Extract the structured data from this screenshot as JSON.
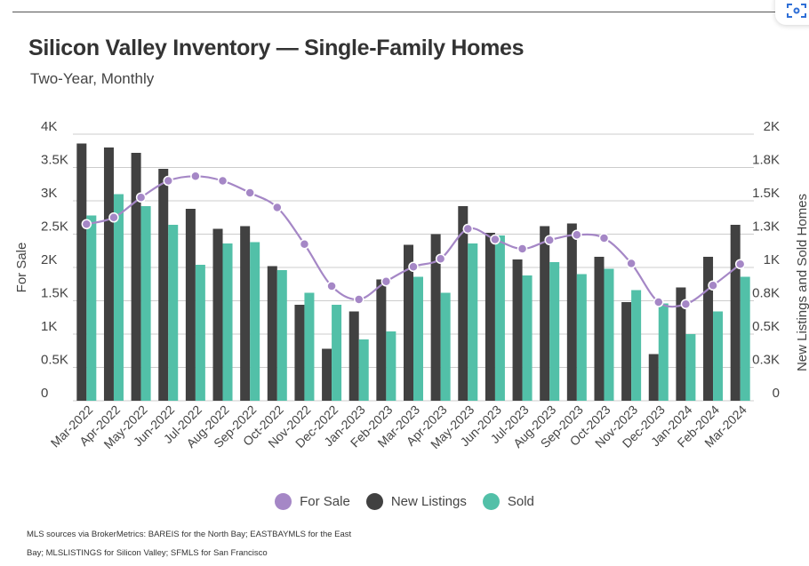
{
  "title": "Silicon Valley Inventory — Single-Family Homes",
  "subtitle": "Two-Year, Monthly",
  "source_note": "MLS sources via BrokerMetrics: BAREIS for the North Bay; EASTBAYMLS for the East Bay; MLSLISTINGS for Silicon Valley; SFMLS for San Francisco",
  "colors": {
    "for_sale": "#a587c6",
    "new_listings": "#414141",
    "sold": "#52c0a8",
    "gridline": "#cccccc",
    "text": "#444444"
  },
  "corner_button": {
    "icon": "scan-icon"
  },
  "chart_data": {
    "type": "bar",
    "categories": [
      "Mar-2022",
      "Apr-2022",
      "May-2022",
      "Jun-2022",
      "Jul-2022",
      "Aug-2022",
      "Sep-2022",
      "Oct-2022",
      "Nov-2022",
      "Dec-2022",
      "Jan-2023",
      "Feb-2023",
      "Mar-2023",
      "Apr-2023",
      "May-2023",
      "Jun-2023",
      "Jul-2023",
      "Aug-2023",
      "Sep-2023",
      "Oct-2023",
      "Nov-2023",
      "Dec-2023",
      "Jan-2024",
      "Feb-2024",
      "Mar-2024"
    ],
    "ylabel": "For Sale",
    "y2label": "New Listings and Sold Homes",
    "ylim": [
      0,
      4000
    ],
    "y2lim": [
      0,
      2000
    ],
    "yticks": [
      {
        "v": 0,
        "label": "0"
      },
      {
        "v": 500,
        "label": "0.5K"
      },
      {
        "v": 1000,
        "label": "1K"
      },
      {
        "v": 1500,
        "label": "1.5K"
      },
      {
        "v": 2000,
        "label": "2K"
      },
      {
        "v": 2500,
        "label": "2.5K"
      },
      {
        "v": 3000,
        "label": "3K"
      },
      {
        "v": 3500,
        "label": "3.5K"
      },
      {
        "v": 4000,
        "label": "4K"
      }
    ],
    "y2ticks": [
      {
        "v": 0,
        "label": "0"
      },
      {
        "v": 250,
        "label": "0.3K"
      },
      {
        "v": 500,
        "label": "0.5K"
      },
      {
        "v": 750,
        "label": "0.8K"
      },
      {
        "v": 1000,
        "label": "1K"
      },
      {
        "v": 1250,
        "label": "1.3K"
      },
      {
        "v": 1500,
        "label": "1.5K"
      },
      {
        "v": 1750,
        "label": "1.8K"
      },
      {
        "v": 2000,
        "label": "2K"
      }
    ],
    "grid": true,
    "legend_position": "bottom-center",
    "series": [
      {
        "name": "For Sale",
        "type": "line",
        "axis": "left",
        "values": [
          2650,
          2750,
          3050,
          3300,
          3370,
          3300,
          3120,
          2900,
          2350,
          1720,
          1520,
          1790,
          2010,
          2130,
          2580,
          2420,
          2280,
          2410,
          2490,
          2440,
          2060,
          1480,
          1450,
          1730,
          2050
        ]
      },
      {
        "name": "New Listings",
        "type": "bar",
        "axis": "right",
        "values": [
          1930,
          1900,
          1860,
          1740,
          1440,
          1290,
          1310,
          1010,
          720,
          390,
          670,
          910,
          1170,
          1250,
          1460,
          1260,
          1060,
          1310,
          1330,
          1080,
          740,
          350,
          850,
          1080,
          1320
        ]
      },
      {
        "name": "Sold",
        "type": "bar",
        "axis": "right",
        "values": [
          1390,
          1550,
          1460,
          1320,
          1020,
          1180,
          1190,
          980,
          810,
          720,
          460,
          520,
          930,
          810,
          1180,
          1240,
          940,
          1040,
          950,
          990,
          830,
          730,
          500,
          670,
          930
        ]
      }
    ]
  }
}
